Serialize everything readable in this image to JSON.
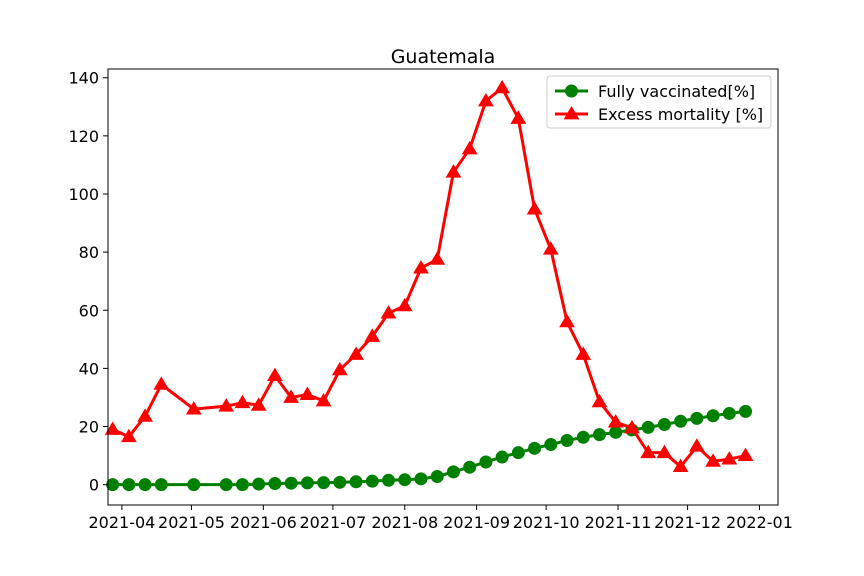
{
  "chart_data": {
    "type": "line",
    "title": "Guatemala",
    "xlabel": "",
    "ylabel": "",
    "x_ticks": [
      "2021-04",
      "2021-05",
      "2021-06",
      "2021-07",
      "2021-08",
      "2021-09",
      "2021-10",
      "2021-11",
      "2021-12",
      "2022-01"
    ],
    "y_ticks": [
      0,
      20,
      40,
      60,
      80,
      100,
      120,
      140
    ],
    "xlim": [
      "2021-03-26",
      "2022-01-09"
    ],
    "ylim": [
      -7,
      143
    ],
    "grid": false,
    "legend_position": "top-right",
    "series": [
      {
        "name": "Fully vaccinated[%]",
        "color": "#008000",
        "marker": "circle",
        "points": [
          [
            "2021-03-28",
            0
          ],
          [
            "2021-04-04",
            0
          ],
          [
            "2021-04-11",
            0
          ],
          [
            "2021-04-18",
            0
          ],
          [
            "2021-05-02",
            0
          ],
          [
            "2021-05-16",
            0
          ],
          [
            "2021-05-23",
            0
          ],
          [
            "2021-05-30",
            0.2
          ],
          [
            "2021-06-06",
            0.4
          ],
          [
            "2021-06-13",
            0.5
          ],
          [
            "2021-06-20",
            0.6
          ],
          [
            "2021-06-27",
            0.7
          ],
          [
            "2021-07-04",
            0.8
          ],
          [
            "2021-07-11",
            1.0
          ],
          [
            "2021-07-18",
            1.2
          ],
          [
            "2021-07-25",
            1.5
          ],
          [
            "2021-08-01",
            1.7
          ],
          [
            "2021-08-08",
            2.0
          ],
          [
            "2021-08-15",
            2.8
          ],
          [
            "2021-08-22",
            4.4
          ],
          [
            "2021-08-29",
            6.0
          ],
          [
            "2021-09-05",
            7.8
          ],
          [
            "2021-09-12",
            9.5
          ],
          [
            "2021-09-19",
            11.0
          ],
          [
            "2021-09-26",
            12.5
          ],
          [
            "2021-10-03",
            13.8
          ],
          [
            "2021-10-10",
            15.2
          ],
          [
            "2021-10-17",
            16.3
          ],
          [
            "2021-10-24",
            17.2
          ],
          [
            "2021-10-31",
            18.0
          ],
          [
            "2021-11-07",
            18.8
          ],
          [
            "2021-11-14",
            19.7
          ],
          [
            "2021-11-21",
            20.7
          ],
          [
            "2021-11-28",
            21.8
          ],
          [
            "2021-12-05",
            22.8
          ],
          [
            "2021-12-12",
            23.7
          ],
          [
            "2021-12-19",
            24.5
          ],
          [
            "2021-12-26",
            25.2
          ]
        ]
      },
      {
        "name": "Excess mortality [%]",
        "color": "#ff0000",
        "marker": "triangle",
        "points": [
          [
            "2021-03-28",
            19.0
          ],
          [
            "2021-04-04",
            16.5
          ],
          [
            "2021-04-11",
            23.5
          ],
          [
            "2021-04-18",
            34.5
          ],
          [
            "2021-05-02",
            26.0
          ],
          [
            "2021-05-16",
            27.0
          ],
          [
            "2021-05-23",
            28.2
          ],
          [
            "2021-05-30",
            27.3
          ],
          [
            "2021-06-06",
            37.5
          ],
          [
            "2021-06-13",
            30.0
          ],
          [
            "2021-06-20",
            31.0
          ],
          [
            "2021-06-27",
            28.8
          ],
          [
            "2021-07-04",
            39.5
          ],
          [
            "2021-07-11",
            44.8
          ],
          [
            "2021-07-18",
            51.0
          ],
          [
            "2021-07-25",
            59.0
          ],
          [
            "2021-08-01",
            61.5
          ],
          [
            "2021-08-08",
            74.5
          ],
          [
            "2021-08-15",
            77.5
          ],
          [
            "2021-08-22",
            107.5
          ],
          [
            "2021-08-29",
            115.5
          ],
          [
            "2021-09-05",
            132.0
          ],
          [
            "2021-09-12",
            136.5
          ],
          [
            "2021-09-19",
            126.0
          ],
          [
            "2021-09-26",
            94.8
          ],
          [
            "2021-10-03",
            81.0
          ],
          [
            "2021-10-10",
            56.0
          ],
          [
            "2021-10-17",
            44.8
          ],
          [
            "2021-10-24",
            28.5
          ],
          [
            "2021-10-31",
            21.5
          ],
          [
            "2021-11-07",
            19.5
          ],
          [
            "2021-11-14",
            11.0
          ],
          [
            "2021-11-21",
            11.0
          ],
          [
            "2021-11-28",
            6.2
          ],
          [
            "2021-12-05",
            13.2
          ],
          [
            "2021-12-12",
            8.0
          ],
          [
            "2021-12-19",
            8.8
          ],
          [
            "2021-12-26",
            10.0
          ]
        ]
      }
    ]
  }
}
